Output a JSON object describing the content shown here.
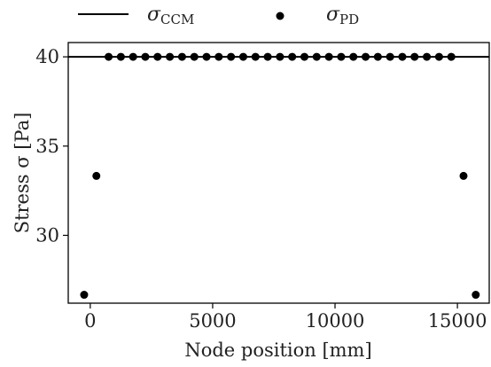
{
  "chart_data": {
    "type": "line",
    "xlabel": "Node position [mm]",
    "ylabel": "Stress σ [Pa]",
    "xlim": [
      -900,
      16300
    ],
    "ylim": [
      26.2,
      40.8
    ],
    "xticks": [
      0,
      5000,
      10000,
      15000
    ],
    "yticks": [
      30,
      35,
      40
    ],
    "grid": false,
    "legend_position": "top",
    "series": [
      {
        "name": "σCCM",
        "name_main": "σ",
        "name_sub": "CCM",
        "kind": "line",
        "color": "#000000",
        "x": [
          -900,
          16300
        ],
        "y": [
          40,
          40
        ]
      },
      {
        "name": "σPD",
        "name_main": "σ",
        "name_sub": "PD",
        "kind": "scatter",
        "color": "#000000",
        "x": [
          -250,
          250,
          750,
          1250,
          1750,
          2250,
          2750,
          3250,
          3750,
          4250,
          4750,
          5250,
          5750,
          6250,
          6750,
          7250,
          7750,
          8250,
          8750,
          9250,
          9750,
          10250,
          10750,
          11250,
          11750,
          12250,
          12750,
          13250,
          13750,
          14250,
          14750,
          15250,
          15750
        ],
        "y": [
          26.67,
          33.33,
          40,
          40,
          40,
          40,
          40,
          40,
          40,
          40,
          40,
          40,
          40,
          40,
          40,
          40,
          40,
          40,
          40,
          40,
          40,
          40,
          40,
          40,
          40,
          40,
          40,
          40,
          40,
          40,
          40,
          33.33,
          26.67
        ]
      }
    ]
  }
}
